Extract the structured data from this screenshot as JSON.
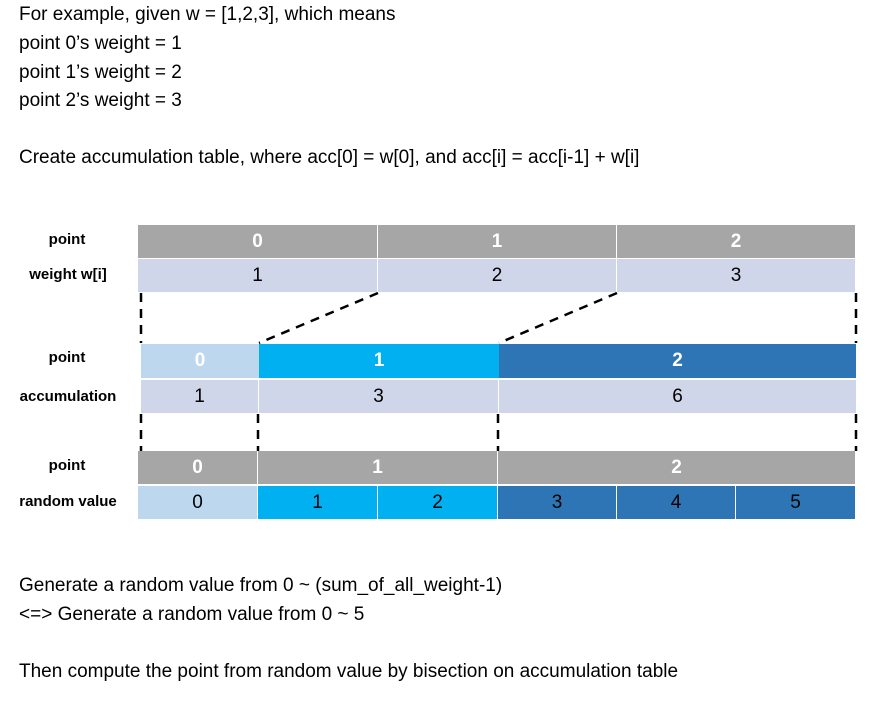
{
  "intro": {
    "line1": "For example, given w = [1,2,3], which means",
    "line2": "point 0’s weight = 1",
    "line3": "point 1’s weight = 2",
    "line4": "point 2’s weight = 3",
    "line5": "Create accumulation table, where acc[0] = w[0], and acc[i] = acc[i-1] + w[i]"
  },
  "table1": {
    "point_label": "point",
    "weight_label": "weight w[i]",
    "points": [
      "0",
      "1",
      "2"
    ],
    "weights": [
      "1",
      "2",
      "3"
    ]
  },
  "table2": {
    "point_label": "point",
    "acc_label": "accumulation",
    "points": [
      "0",
      "1",
      "2"
    ],
    "acc": [
      "1",
      "3",
      "6"
    ]
  },
  "table3": {
    "point_label": "point",
    "random_label": "random value",
    "points": [
      "0",
      "1",
      "2"
    ],
    "values": [
      "0",
      "1",
      "2",
      "3",
      "4",
      "5"
    ]
  },
  "outro": {
    "line1": "Generate a random value from 0 ~ (sum_of_all_weight-1)",
    "line2": "<=> Generate a random value from 0 ~ 5",
    "line3": "Then compute the point from random value by bisection on accumulation table"
  },
  "colors": {
    "gray": "#a6a6a6",
    "lavender": "#d0d6ea",
    "light_blue": "#bdd7ee",
    "cyan": "#00b0f0",
    "dark_blue": "#2e75b6"
  }
}
